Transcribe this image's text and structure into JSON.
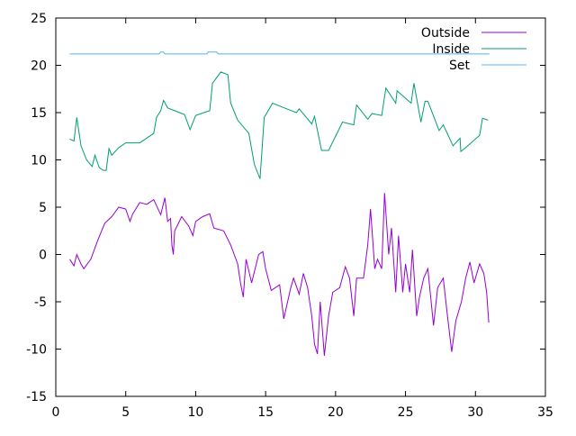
{
  "chart_data": {
    "type": "line",
    "title": "",
    "xlabel": "",
    "ylabel": "",
    "xlim": [
      0,
      35
    ],
    "ylim": [
      -15,
      25
    ],
    "x_ticks": [
      "0",
      "5",
      "10",
      "15",
      "20",
      "25",
      "30",
      "35"
    ],
    "y_ticks": [
      "-15",
      "-10",
      "-5",
      "0",
      "5",
      "10",
      "15",
      "20",
      "25"
    ],
    "grid": false,
    "legend_position": "top-right",
    "series": [
      {
        "name": "Outside",
        "color": "#9400d3",
        "x": [
          1.0,
          1.3,
          1.5,
          1.8,
          2.0,
          2.5,
          3.0,
          3.5,
          4.0,
          4.5,
          5.0,
          5.3,
          5.5,
          6.0,
          6.5,
          7.0,
          7.5,
          7.8,
          8.0,
          8.2,
          8.3,
          8.4,
          8.5,
          9.0,
          9.5,
          9.8,
          10.0,
          10.5,
          11.0,
          11.3,
          12.0,
          12.5,
          13.0,
          13.2,
          13.4,
          13.6,
          14.0,
          14.5,
          14.8,
          15.0,
          15.4,
          16.0,
          16.3,
          16.8,
          17.0,
          17.4,
          17.7,
          18.0,
          18.3,
          18.5,
          18.7,
          18.9,
          19.2,
          19.5,
          19.8,
          20.3,
          20.7,
          21.0,
          21.3,
          21.5,
          22.0,
          22.3,
          22.5,
          22.8,
          23.0,
          23.3,
          23.5,
          23.8,
          24.0,
          24.3,
          24.5,
          24.8,
          25.0,
          25.3,
          25.5,
          25.8,
          26.0,
          26.3,
          26.6,
          27.0,
          27.3,
          27.7,
          28.0,
          28.3,
          28.6,
          29.0,
          29.3,
          29.6,
          29.9,
          30.3,
          30.6,
          30.8,
          30.95
        ],
        "y": [
          -0.5,
          -1.2,
          0,
          -1,
          -1.5,
          -0.5,
          1.5,
          3.3,
          4,
          5,
          4.8,
          3.5,
          4.3,
          5.5,
          5.3,
          5.8,
          4.2,
          6,
          3.5,
          3.8,
          1,
          0,
          2.5,
          4,
          3,
          2,
          3.5,
          4,
          4.3,
          2.8,
          2.5,
          1,
          -1,
          -3,
          -4.5,
          -0.5,
          -3,
          0,
          0.3,
          -1.5,
          -3.8,
          -3.2,
          -6.8,
          -3.5,
          -2.5,
          -4.2,
          -2,
          -3.5,
          -6.5,
          -9.5,
          -10.5,
          -5,
          -10.7,
          -6.5,
          -4,
          -3.5,
          -1.3,
          -2.5,
          -6.5,
          -2.5,
          -2.5,
          1,
          4.8,
          -1.5,
          -0.5,
          -1.5,
          6.5,
          0,
          2.8,
          -4,
          2,
          -4,
          -1,
          -4,
          0.5,
          -6.5,
          -4.5,
          -2.5,
          -1.5,
          -7.5,
          -3.5,
          -2.5,
          -6.5,
          -10.3,
          -7,
          -5,
          -2.5,
          -0.8,
          -3,
          -1,
          -2,
          -4,
          -7.2
        ]
      },
      {
        "name": "Inside",
        "color": "#009e73",
        "x": [
          1.0,
          1.3,
          1.5,
          1.8,
          2.2,
          2.6,
          2.8,
          3.1,
          3.4,
          3.6,
          3.8,
          4.0,
          4.5,
          5.0,
          6.0,
          7.0,
          7.2,
          7.5,
          7.7,
          8.0,
          8.5,
          9.2,
          9.6,
          10.0,
          11.0,
          11.2,
          11.8,
          12.3,
          12.5,
          13.0,
          13.8,
          14.2,
          14.6,
          14.9,
          15.5,
          16.0,
          16.5,
          17.2,
          17.4,
          18.3,
          18.5,
          19.0,
          19.5,
          20.5,
          21.3,
          21.5,
          22.3,
          22.6,
          23.3,
          23.6,
          24.3,
          24.4,
          25.4,
          25.6,
          26.1,
          26.4,
          26.6,
          27.4,
          27.7,
          28.4,
          28.9,
          28.95,
          29.3,
          30.3,
          30.5,
          30.9
        ],
        "y": [
          12.2,
          12.0,
          14.5,
          11.5,
          10,
          9.3,
          10.5,
          9.2,
          8.9,
          8.9,
          11.2,
          10.5,
          11.3,
          11.8,
          11.8,
          12.8,
          14.5,
          15.2,
          16.3,
          15.5,
          15.2,
          14.8,
          13.2,
          14.7,
          15.2,
          18.1,
          19.3,
          19.0,
          16,
          14.2,
          12.8,
          9.5,
          8.0,
          14.5,
          16,
          15.7,
          15.4,
          15.0,
          15.4,
          13.8,
          14.6,
          11.0,
          11.0,
          14.0,
          13.7,
          15.8,
          14.3,
          14.9,
          14.7,
          17.6,
          16.0,
          17.3,
          16.0,
          18.1,
          14.0,
          16.2,
          16.2,
          13.1,
          13.7,
          11.5,
          12.3,
          10.9,
          11.3,
          12.6,
          14.4,
          14.2
        ]
      },
      {
        "name": "Set",
        "color": "#56b4e9",
        "x": [
          1.0,
          7.4,
          7.5,
          7.7,
          7.8,
          10.8,
          10.9,
          11.5,
          11.6,
          31.0
        ],
        "y": [
          21.2,
          21.2,
          21.4,
          21.4,
          21.2,
          21.2,
          21.4,
          21.4,
          21.2,
          21.2
        ]
      }
    ]
  }
}
